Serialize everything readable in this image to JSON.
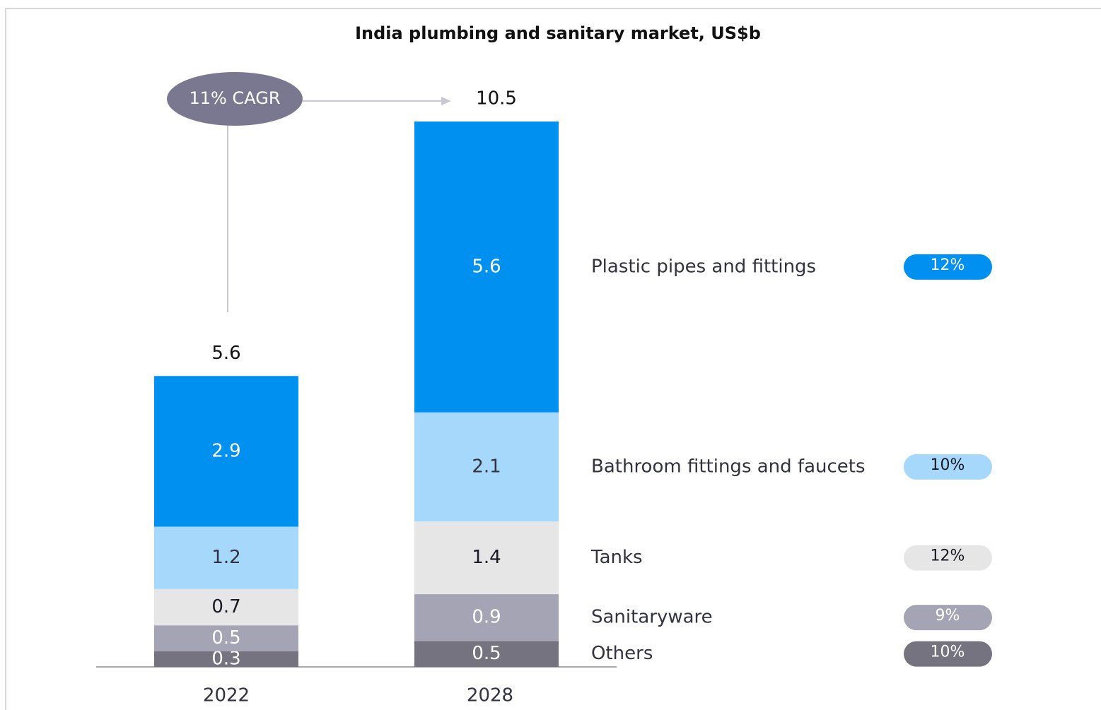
{
  "chart_data": {
    "type": "stacked_bar",
    "title": "India plumbing and sanitary market, US$b",
    "categories": [
      "2022",
      "2028"
    ],
    "totals": [
      5.6,
      10.5
    ],
    "annotation": "11% CAGR",
    "series": [
      {
        "name": "Others",
        "color": "#75737f",
        "label_color": "#ffffff",
        "cagr_label": "10%",
        "values": [
          0.3,
          0.5
        ]
      },
      {
        "name": "Sanitaryware",
        "color": "#a5a4b4",
        "label_color": "#ffffff",
        "cagr_label": "9%",
        "values": [
          0.5,
          0.9
        ]
      },
      {
        "name": "Tanks",
        "color": "#e6e6e6",
        "label_color": "#1a1a24",
        "cagr_label": "12%",
        "values": [
          0.7,
          1.4
        ]
      },
      {
        "name": "Bathroom fittings and faucets",
        "color": "#a6d8fc",
        "label_color": "#333340",
        "cagr_label": "10%",
        "values": [
          1.2,
          2.1
        ]
      },
      {
        "name": "Plastic pipes and fittings",
        "color": "#0090f0",
        "label_color": "#ffffff",
        "cagr_label": "12%",
        "values": [
          2.9,
          5.6
        ]
      }
    ]
  }
}
